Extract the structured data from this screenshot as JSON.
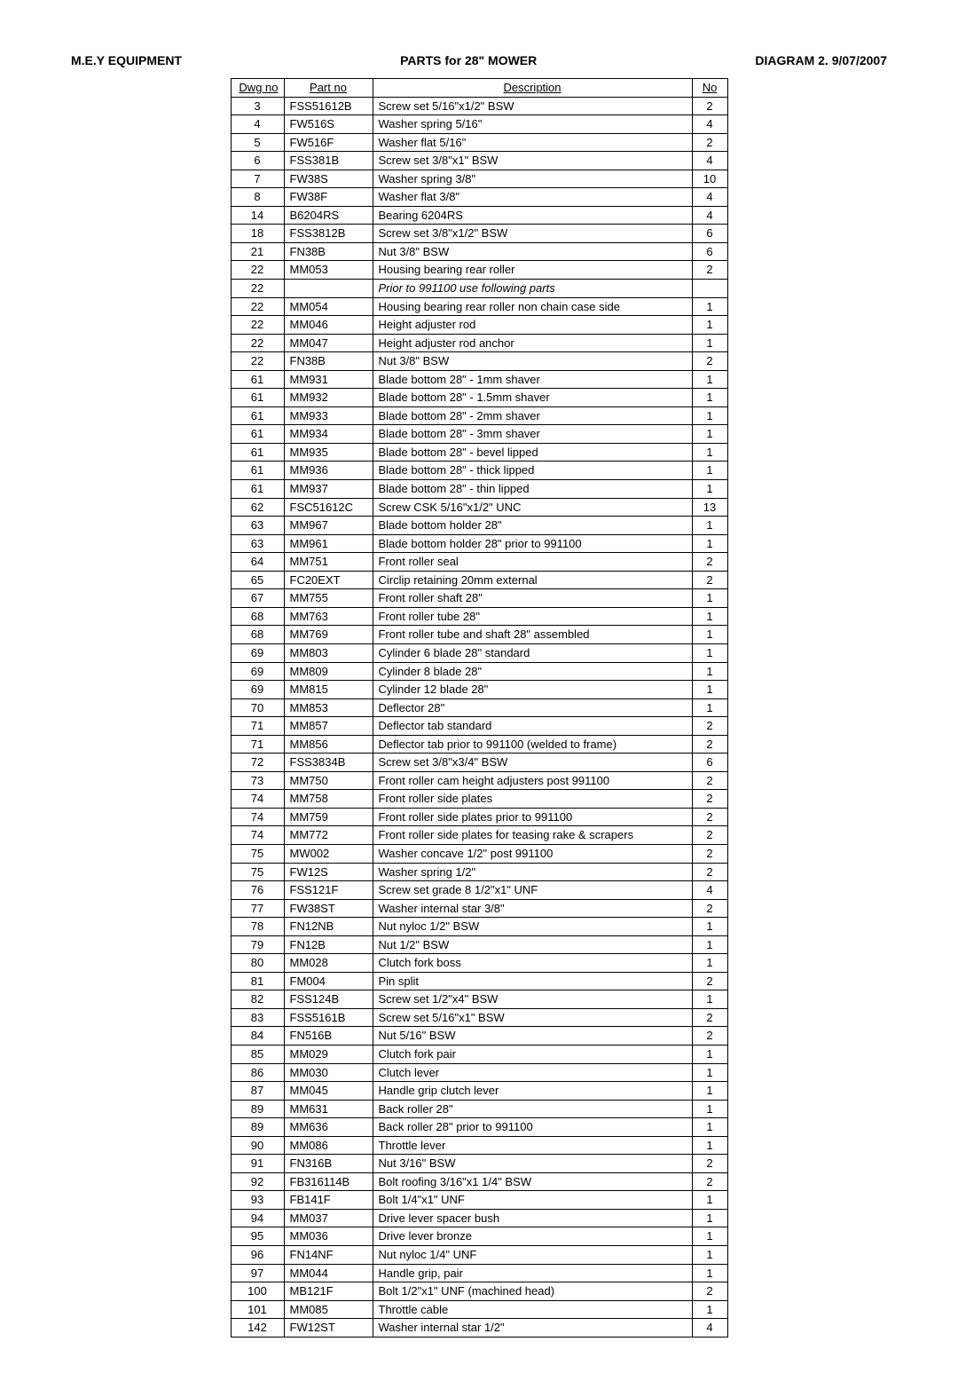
{
  "header": {
    "left": "M.E.Y EQUIPMENT",
    "center": "PARTS for 28\" MOWER",
    "right": "DIAGRAM 2. 9/07/2007"
  },
  "columns": {
    "dwg": "Dwg no",
    "part": "Part no",
    "desc": "Description",
    "no": "No"
  },
  "rows": [
    {
      "dwg": "3",
      "part": "FSS51612B",
      "desc": "Screw set 5/16\"x1/2\" BSW",
      "no": "2"
    },
    {
      "dwg": "4",
      "part": "FW516S",
      "desc": "Washer spring 5/16\"",
      "no": "4"
    },
    {
      "dwg": "5",
      "part": "FW516F",
      "desc": "Washer flat 5/16\"",
      "no": "2"
    },
    {
      "dwg": "6",
      "part": "FSS381B",
      "desc": "Screw set 3/8\"x1\" BSW",
      "no": "4"
    },
    {
      "dwg": "7",
      "part": "FW38S",
      "desc": "Washer spring 3/8\"",
      "no": "10"
    },
    {
      "dwg": "8",
      "part": "FW38F",
      "desc": "Washer flat 3/8\"",
      "no": "4"
    },
    {
      "dwg": "14",
      "part": "B6204RS",
      "desc": "Bearing 6204RS",
      "no": "4"
    },
    {
      "dwg": "18",
      "part": "FSS3812B",
      "desc": "Screw set 3/8\"x1/2\" BSW",
      "no": "6"
    },
    {
      "dwg": "21",
      "part": "FN38B",
      "desc": "Nut 3/8\" BSW",
      "no": "6"
    },
    {
      "dwg": "22",
      "part": "MM053",
      "desc": "Housing bearing rear roller",
      "no": "2"
    },
    {
      "dwg": "22",
      "part": "",
      "desc": "Prior to 991100 use following parts",
      "no": "",
      "italic": true
    },
    {
      "dwg": "22",
      "part": "MM054",
      "desc": "Housing bearing rear roller non chain case side",
      "no": "1"
    },
    {
      "dwg": "22",
      "part": "MM046",
      "desc": "Height adjuster rod",
      "no": "1"
    },
    {
      "dwg": "22",
      "part": "MM047",
      "desc": "Height adjuster rod anchor",
      "no": "1"
    },
    {
      "dwg": "22",
      "part": "FN38B",
      "desc": "Nut 3/8\" BSW",
      "no": "2"
    },
    {
      "dwg": "61",
      "part": "MM931",
      "desc": "Blade bottom 28\" - 1mm shaver",
      "no": "1"
    },
    {
      "dwg": "61",
      "part": "MM932",
      "desc": "Blade bottom 28\" - 1.5mm shaver",
      "no": "1"
    },
    {
      "dwg": "61",
      "part": "MM933",
      "desc": "Blade bottom 28\" - 2mm shaver",
      "no": "1"
    },
    {
      "dwg": "61",
      "part": "MM934",
      "desc": "Blade bottom 28\" - 3mm shaver",
      "no": "1"
    },
    {
      "dwg": "61",
      "part": "MM935",
      "desc": "Blade bottom 28\" - bevel lipped",
      "no": "1"
    },
    {
      "dwg": "61",
      "part": "MM936",
      "desc": "Blade bottom 28\" - thick lipped",
      "no": "1"
    },
    {
      "dwg": "61",
      "part": "MM937",
      "desc": "Blade bottom 28\" - thin lipped",
      "no": "1"
    },
    {
      "dwg": "62",
      "part": "FSC51612C",
      "desc": "Screw CSK 5/16\"x1/2\" UNC",
      "no": "13"
    },
    {
      "dwg": "63",
      "part": "MM967",
      "desc": "Blade bottom holder 28\"",
      "no": "1"
    },
    {
      "dwg": "63",
      "part": "MM961",
      "desc": "Blade bottom holder 28\" prior to 991100",
      "no": "1"
    },
    {
      "dwg": "64",
      "part": "MM751",
      "desc": "Front roller seal",
      "no": "2"
    },
    {
      "dwg": "65",
      "part": "FC20EXT",
      "desc": "Circlip retaining 20mm external",
      "no": "2"
    },
    {
      "dwg": "67",
      "part": "MM755",
      "desc": "Front roller shaft 28\"",
      "no": "1"
    },
    {
      "dwg": "68",
      "part": "MM763",
      "desc": "Front roller tube 28\"",
      "no": "1"
    },
    {
      "dwg": "68",
      "part": "MM769",
      "desc": "Front roller tube and shaft 28\" assembled",
      "no": "1"
    },
    {
      "dwg": "69",
      "part": "MM803",
      "desc": "Cylinder 6 blade 28\" standard",
      "no": "1"
    },
    {
      "dwg": "69",
      "part": "MM809",
      "desc": "Cylinder 8 blade 28\"",
      "no": "1"
    },
    {
      "dwg": "69",
      "part": "MM815",
      "desc": "Cylinder 12 blade 28\"",
      "no": "1"
    },
    {
      "dwg": "70",
      "part": "MM853",
      "desc": "Deflector 28\"",
      "no": "1"
    },
    {
      "dwg": "71",
      "part": "MM857",
      "desc": "Deflector tab standard",
      "no": "2"
    },
    {
      "dwg": "71",
      "part": "MM856",
      "desc": "Deflector tab prior to 991100 (welded to frame)",
      "no": "2"
    },
    {
      "dwg": "72",
      "part": "FSS3834B",
      "desc": "Screw set 3/8\"x3/4\" BSW",
      "no": "6"
    },
    {
      "dwg": "73",
      "part": "MM750",
      "desc": "Front roller cam height adjusters post 991100",
      "no": "2"
    },
    {
      "dwg": "74",
      "part": "MM758",
      "desc": "Front roller side plates",
      "no": "2"
    },
    {
      "dwg": "74",
      "part": "MM759",
      "desc": "Front roller side plates prior to 991100",
      "no": "2"
    },
    {
      "dwg": "74",
      "part": "MM772",
      "desc": "Front roller side plates for teasing rake & scrapers",
      "no": "2"
    },
    {
      "dwg": "75",
      "part": "MW002",
      "desc": "Washer concave 1/2\" post 991100",
      "no": "2"
    },
    {
      "dwg": "75",
      "part": "FW12S",
      "desc": "Washer spring 1/2\"",
      "no": "2"
    },
    {
      "dwg": "76",
      "part": "FSS121F",
      "desc": "Screw set grade 8 1/2\"x1\" UNF",
      "no": "4"
    },
    {
      "dwg": "77",
      "part": "FW38ST",
      "desc": "Washer internal star 3/8\"",
      "no": "2"
    },
    {
      "dwg": "78",
      "part": "FN12NB",
      "desc": "Nut nyloc 1/2\" BSW",
      "no": "1"
    },
    {
      "dwg": "79",
      "part": "FN12B",
      "desc": "Nut 1/2\" BSW",
      "no": "1"
    },
    {
      "dwg": "80",
      "part": "MM028",
      "desc": "Clutch fork boss",
      "no": "1"
    },
    {
      "dwg": "81",
      "part": "FM004",
      "desc": "Pin split",
      "no": "2"
    },
    {
      "dwg": "82",
      "part": "FSS124B",
      "desc": "Screw set 1/2\"x4\" BSW",
      "no": "1"
    },
    {
      "dwg": "83",
      "part": "FSS5161B",
      "desc": "Screw set 5/16\"x1\" BSW",
      "no": "2"
    },
    {
      "dwg": "84",
      "part": "FN516B",
      "desc": "Nut 5/16\" BSW",
      "no": "2"
    },
    {
      "dwg": "85",
      "part": "MM029",
      "desc": "Clutch fork pair",
      "no": "1"
    },
    {
      "dwg": "86",
      "part": "MM030",
      "desc": "Clutch lever",
      "no": "1"
    },
    {
      "dwg": "87",
      "part": "MM045",
      "desc": "Handle grip clutch lever",
      "no": "1"
    },
    {
      "dwg": "89",
      "part": "MM631",
      "desc": "Back roller 28\"",
      "no": "1"
    },
    {
      "dwg": "89",
      "part": "MM636",
      "desc": "Back roller 28\" prior to 991100",
      "no": "1"
    },
    {
      "dwg": "90",
      "part": "MM086",
      "desc": "Throttle lever",
      "no": "1"
    },
    {
      "dwg": "91",
      "part": "FN316B",
      "desc": "Nut 3/16\" BSW",
      "no": "2"
    },
    {
      "dwg": "92",
      "part": "FB316114B",
      "desc": "Bolt roofing 3/16\"x1 1/4\" BSW",
      "no": "2"
    },
    {
      "dwg": "93",
      "part": "FB141F",
      "desc": "Bolt 1/4\"x1\" UNF",
      "no": "1"
    },
    {
      "dwg": "94",
      "part": "MM037",
      "desc": "Drive lever spacer bush",
      "no": "1"
    },
    {
      "dwg": "95",
      "part": "MM036",
      "desc": "Drive lever bronze",
      "no": "1"
    },
    {
      "dwg": "96",
      "part": "FN14NF",
      "desc": "Nut nyloc 1/4\" UNF",
      "no": "1"
    },
    {
      "dwg": "97",
      "part": "MM044",
      "desc": "Handle grip, pair",
      "no": "1"
    },
    {
      "dwg": "100",
      "part": "MB121F",
      "desc": "Bolt 1/2\"x1\" UNF (machined head)",
      "no": "2"
    },
    {
      "dwg": "101",
      "part": "MM085",
      "desc": "Throttle cable",
      "no": "1"
    },
    {
      "dwg": "142",
      "part": "FW12ST",
      "desc": "Washer internal star 1/2\"",
      "no": "4"
    }
  ]
}
